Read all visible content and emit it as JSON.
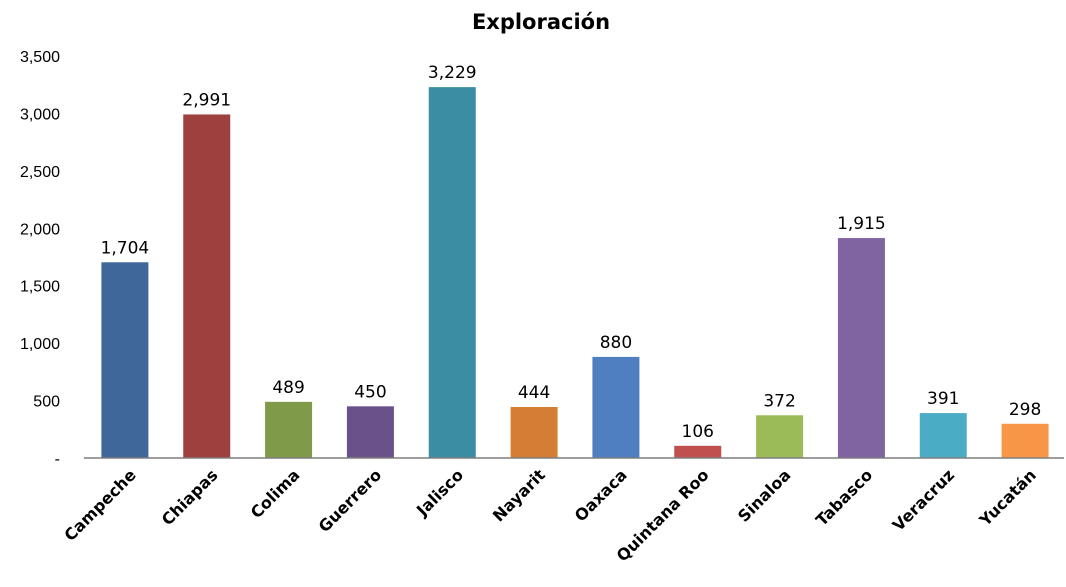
{
  "chart_data": {
    "type": "bar",
    "title": "Exploración",
    "xlabel": "",
    "ylabel": "",
    "ylim": [
      0,
      3500
    ],
    "y_ticks": [
      {
        "value": 0,
        "label": "-"
      },
      {
        "value": 500,
        "label": "500"
      },
      {
        "value": 1000,
        "label": "1,000"
      },
      {
        "value": 1500,
        "label": "1,500"
      },
      {
        "value": 2000,
        "label": "2,000"
      },
      {
        "value": 2500,
        "label": "2,500"
      },
      {
        "value": 3000,
        "label": "3,000"
      },
      {
        "value": 3500,
        "label": "3,500"
      }
    ],
    "grid": false,
    "legend": "none",
    "categories": [
      "Campeche",
      "Chiapas",
      "Colima",
      "Guerrero",
      "Jalisco",
      "Nayarit",
      "Oaxaca",
      "Quintana Roo",
      "Sinaloa",
      "Tabasco",
      "Veracruz",
      "Yucatán"
    ],
    "values": [
      1704,
      2991,
      489,
      450,
      3229,
      444,
      880,
      106,
      372,
      1915,
      391,
      298
    ],
    "value_labels": [
      "1,704",
      "2,991",
      "489",
      "450",
      "3,229",
      "444",
      "880",
      "106",
      "372",
      "1,915",
      "391",
      "298"
    ],
    "colors": [
      "#3F679A",
      "#9E403D",
      "#7F9A48",
      "#6A5189",
      "#3A8DA2",
      "#D47D35",
      "#4F7FC0",
      "#C0504D",
      "#9BBB59",
      "#8064A2",
      "#4BACC6",
      "#F79646"
    ],
    "axis_color": "#7F7F7F"
  }
}
